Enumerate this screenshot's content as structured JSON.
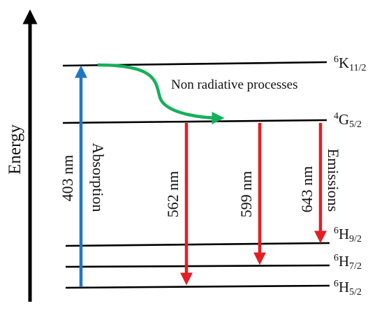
{
  "axis": {
    "title": "Energy"
  },
  "levels": [
    {
      "id": "k11",
      "pre": "6",
      "main": "K",
      "sub": "11/2"
    },
    {
      "id": "g5",
      "pre": "4",
      "main": "G",
      "sub": "5/2"
    },
    {
      "id": "h9",
      "pre": "6",
      "main": "H",
      "sub": "9/2"
    },
    {
      "id": "h7",
      "pre": "6",
      "main": "H",
      "sub": "7/2"
    },
    {
      "id": "h5",
      "pre": "6",
      "main": "H",
      "sub": "5/2"
    }
  ],
  "transitions": {
    "absorption": {
      "wavelength": "403 nm",
      "label": "Absorption",
      "color": "#1f77c4"
    },
    "nonradiative": {
      "label": "Non radiative processes",
      "color": "#16b05a"
    },
    "emissions": {
      "label": "Emissions",
      "color": "#e31e24",
      "items": [
        {
          "wavelength": "562 nm",
          "to": "h5"
        },
        {
          "wavelength": "599 nm",
          "to": "h7"
        },
        {
          "wavelength": "643 nm",
          "to": "h9"
        }
      ]
    }
  }
}
